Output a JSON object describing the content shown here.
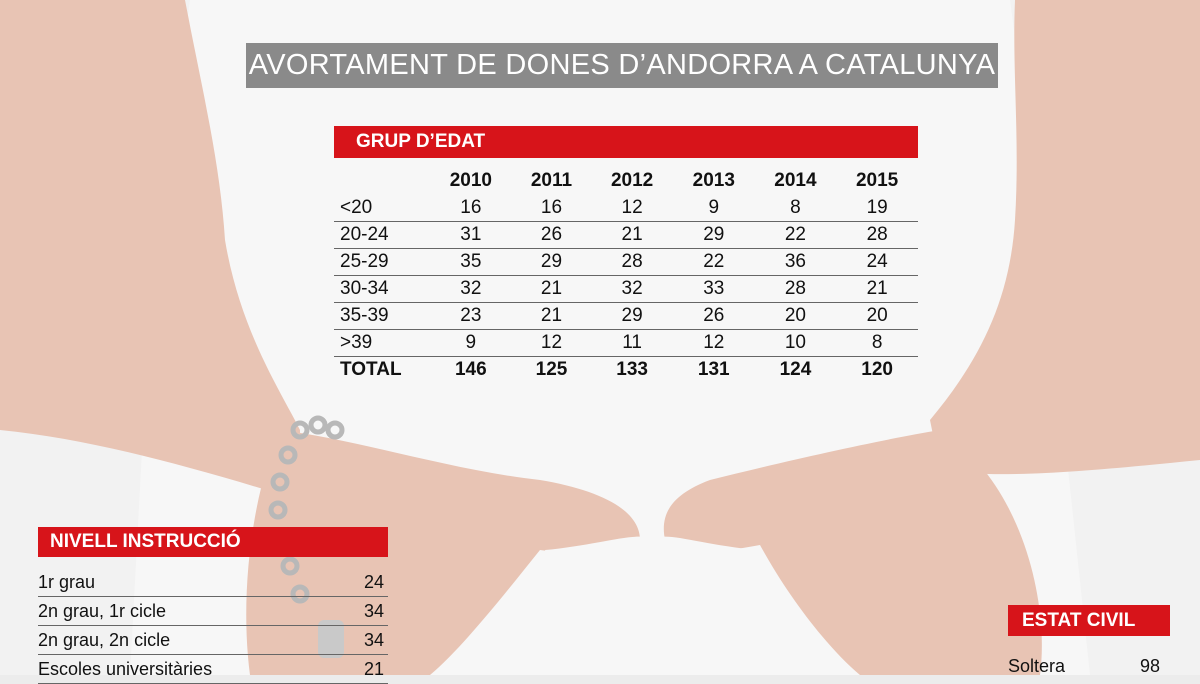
{
  "title": "AVORTAMENT DE DONES D’ANDORRA A CATALUNYA",
  "chart_data": [
    {
      "type": "table",
      "title": "GRUP D’EDAT",
      "columns": [
        "2010",
        "2011",
        "2012",
        "2013",
        "2014",
        "2015"
      ],
      "rows": [
        {
          "label": "<20",
          "values": [
            "16",
            "16",
            "12",
            "9",
            "8",
            "19"
          ]
        },
        {
          "label": "20-24",
          "values": [
            "31",
            "26",
            "21",
            "29",
            "22",
            "28"
          ]
        },
        {
          "label": "25-29",
          "values": [
            "35",
            "29",
            "28",
            "22",
            "36",
            "24"
          ]
        },
        {
          "label": "30-34",
          "values": [
            "32",
            "21",
            "32",
            "33",
            "28",
            "21"
          ]
        },
        {
          "label": "35-39",
          "values": [
            "23",
            "21",
            "29",
            "26",
            "20",
            "20"
          ]
        },
        {
          "label": ">39",
          "values": [
            "9",
            "12",
            "11",
            "12",
            "10",
            "8"
          ]
        }
      ],
      "total": {
        "label": "TOTAL",
        "values": [
          "146",
          "125",
          "133",
          "131",
          "124",
          "120"
        ]
      }
    },
    {
      "type": "table",
      "title": "NIVELL INSTRUCCIÓ",
      "rows": [
        {
          "label": "1r grau",
          "value": "24"
        },
        {
          "label": "2n grau, 1r cicle",
          "value": "34"
        },
        {
          "label": "2n grau, 2n cicle",
          "value": "34"
        },
        {
          "label": "Escoles universitàries",
          "value": "21"
        }
      ]
    },
    {
      "type": "table",
      "title": "ESTAT CIVIL",
      "rows": [
        {
          "label": "Soltera",
          "value": "98"
        }
      ]
    }
  ]
}
